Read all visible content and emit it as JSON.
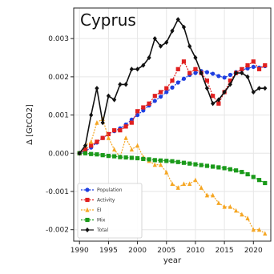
{
  "chart_data": {
    "type": "line",
    "title": "Cyprus",
    "xlabel": "year",
    "ylabel": "Δ [GtCO2]",
    "xlim": [
      1989,
      2023
    ],
    "ylim": [
      -0.0023,
      0.0038
    ],
    "xticks": [
      1990,
      1995,
      2000,
      2005,
      2010,
      2015,
      2020
    ],
    "xtick_labels": [
      "1990",
      "1995",
      "2000",
      "2005",
      "2010",
      "2015",
      "2020"
    ],
    "yticks": [
      -0.002,
      -0.001,
      0.0,
      0.001,
      0.002,
      0.003
    ],
    "ytick_labels": [
      "-0.002",
      "-0.001",
      "0.000",
      "0.001",
      "0.002",
      "0.003"
    ],
    "grid": true,
    "legend_position": "bottom-left",
    "x": [
      1990,
      1991,
      1992,
      1993,
      1994,
      1995,
      1996,
      1997,
      1998,
      1999,
      2000,
      2001,
      2002,
      2003,
      2004,
      2005,
      2006,
      2007,
      2008,
      2009,
      2010,
      2011,
      2012,
      2013,
      2014,
      2015,
      2016,
      2017,
      2018,
      2019,
      2020,
      2021,
      2022
    ],
    "series": [
      {
        "name": "Population",
        "color": "#1f3fe0",
        "marker": "circle",
        "values": [
          0.0,
          5e-05,
          0.00015,
          0.00028,
          0.0004,
          0.0005,
          0.00058,
          0.00065,
          0.00075,
          0.00088,
          0.001,
          0.00112,
          0.00125,
          0.00137,
          0.00148,
          0.0016,
          0.00172,
          0.00185,
          0.00195,
          0.00205,
          0.0021,
          0.00215,
          0.00212,
          0.00208,
          0.00202,
          0.00198,
          0.00205,
          0.00212,
          0.00218,
          0.00222,
          0.00226,
          0.00224,
          0.00228
        ]
      },
      {
        "name": "Activity",
        "color": "#e01f1f",
        "marker": "square",
        "values": [
          0.0,
          0.0001,
          0.0002,
          0.0003,
          0.0004,
          0.0005,
          0.0006,
          0.0006,
          0.0007,
          0.0008,
          0.0011,
          0.0012,
          0.0013,
          0.0015,
          0.0016,
          0.0017,
          0.0019,
          0.0022,
          0.0024,
          0.0021,
          0.0022,
          0.0021,
          0.0019,
          0.0015,
          0.0013,
          0.0016,
          0.0019,
          0.0021,
          0.0022,
          0.0023,
          0.0024,
          0.0022,
          0.0023
        ]
      },
      {
        "name": "EI",
        "color": "#f5a623",
        "marker": "triangle",
        "values": [
          0.0,
          0.0002,
          0.0003,
          0.0008,
          0.0009,
          0.0004,
          0.0001,
          -0.0001,
          0.0004,
          0.0001,
          0.0002,
          -0.0001,
          -0.0002,
          -0.0003,
          -0.0003,
          -0.0005,
          -0.0008,
          -0.0009,
          -0.0008,
          -0.0008,
          -0.0007,
          -0.0009,
          -0.0011,
          -0.0011,
          -0.0013,
          -0.0014,
          -0.0014,
          -0.0015,
          -0.0016,
          -0.0017,
          -0.002,
          -0.002,
          -0.0021
        ]
      },
      {
        "name": "Mix",
        "color": "#1a9a1a",
        "marker": "square",
        "values": [
          0.0,
          0.0,
          -2e-05,
          -3e-05,
          -5e-05,
          -7e-05,
          -8e-05,
          -0.0001,
          -0.00011,
          -0.00012,
          -0.00013,
          -0.00015,
          -0.00016,
          -0.00018,
          -0.00019,
          -0.0002,
          -0.00021,
          -0.00023,
          -0.00025,
          -0.00027,
          -0.00029,
          -0.00031,
          -0.00033,
          -0.00035,
          -0.00037,
          -0.00039,
          -0.00042,
          -0.00045,
          -0.00049,
          -0.00055,
          -0.00062,
          -0.0007,
          -0.00078
        ]
      },
      {
        "name": "Total",
        "color": "#111111",
        "marker": "diamond",
        "values": [
          0.0,
          0.0002,
          0.001,
          0.0017,
          0.0008,
          0.0015,
          0.0014,
          0.0018,
          0.0018,
          0.0022,
          0.0022,
          0.0023,
          0.0025,
          0.003,
          0.0028,
          0.0029,
          0.0032,
          0.0035,
          0.0033,
          0.0028,
          0.0025,
          0.0021,
          0.0017,
          0.0013,
          0.0014,
          0.0016,
          0.0018,
          0.0021,
          0.0021,
          0.002,
          0.0016,
          0.0017,
          0.0017
        ]
      }
    ]
  }
}
